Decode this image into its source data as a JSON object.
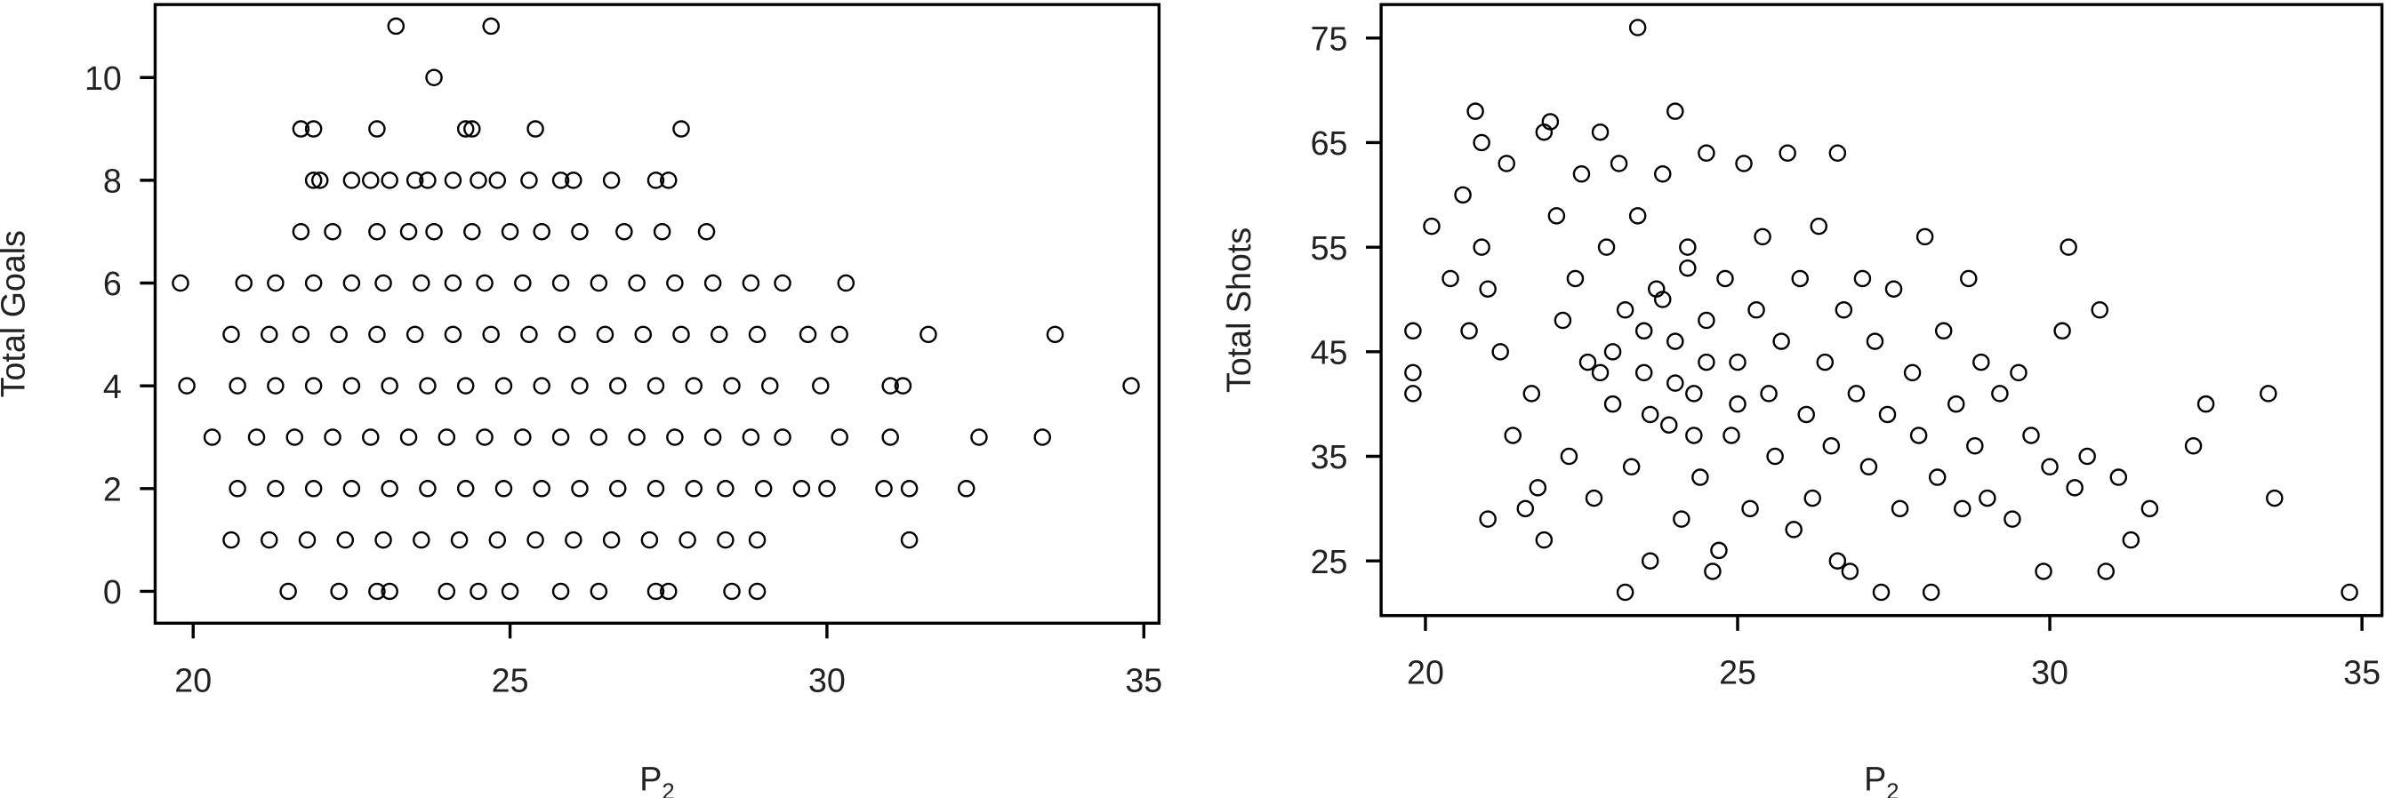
{
  "chart_data": [
    {
      "type": "scatter",
      "ylabel": "Total Goals",
      "xlabel": "P",
      "xlabel_subscript": "2",
      "color": "#000000",
      "xlim": [
        19.4,
        35.24
      ],
      "ylim": [
        -0.62,
        11.42
      ],
      "xticks": [
        20,
        25,
        30,
        35
      ],
      "yticks": [
        0,
        2,
        4,
        6,
        8,
        10
      ],
      "x": [
        23.2,
        24.7,
        23.8,
        21.7,
        21.9,
        22.9,
        24.3,
        24.4,
        25.4,
        27.7,
        21.9,
        22.0,
        22.5,
        22.8,
        23.1,
        23.5,
        23.7,
        24.1,
        24.5,
        24.8,
        25.3,
        25.8,
        26.0,
        26.6,
        27.3,
        27.5,
        21.7,
        22.2,
        22.9,
        23.4,
        23.8,
        24.4,
        25.0,
        25.5,
        26.1,
        26.8,
        27.4,
        28.1,
        19.8,
        20.8,
        21.3,
        21.9,
        22.5,
        23.0,
        23.6,
        24.1,
        24.6,
        25.2,
        25.8,
        26.4,
        27.0,
        27.6,
        28.2,
        28.8,
        29.3,
        30.3,
        20.6,
        21.2,
        21.7,
        22.3,
        22.9,
        23.5,
        24.1,
        24.7,
        25.3,
        25.9,
        26.5,
        27.1,
        27.7,
        28.3,
        28.9,
        29.7,
        30.2,
        31.6,
        33.6,
        19.9,
        20.7,
        21.3,
        21.9,
        22.5,
        23.1,
        23.7,
        24.3,
        24.9,
        25.5,
        26.1,
        26.7,
        27.3,
        27.9,
        28.5,
        29.1,
        29.9,
        31.0,
        31.2,
        34.8,
        20.3,
        21.0,
        21.6,
        22.2,
        22.8,
        23.4,
        24.0,
        24.6,
        25.2,
        25.8,
        26.4,
        27.0,
        27.6,
        28.2,
        28.8,
        29.3,
        30.2,
        31.0,
        32.4,
        33.4,
        20.7,
        21.3,
        21.9,
        22.5,
        23.1,
        23.7,
        24.3,
        24.9,
        25.5,
        26.1,
        26.7,
        27.3,
        27.9,
        28.4,
        29.0,
        29.6,
        30.0,
        30.9,
        31.3,
        32.2,
        20.6,
        21.2,
        21.8,
        22.4,
        23.0,
        23.6,
        24.2,
        24.8,
        25.4,
        26.0,
        26.6,
        27.2,
        27.8,
        28.4,
        28.9,
        31.3,
        21.5,
        22.3,
        22.9,
        23.1,
        24.0,
        24.5,
        25.0,
        25.8,
        26.4,
        27.3,
        27.5,
        28.5,
        28.9
      ],
      "values": [
        11,
        11,
        10,
        9,
        9,
        9,
        9,
        9,
        9,
        9,
        8,
        8,
        8,
        8,
        8,
        8,
        8,
        8,
        8,
        8,
        8,
        8,
        8,
        8,
        8,
        8,
        7,
        7,
        7,
        7,
        7,
        7,
        7,
        7,
        7,
        7,
        7,
        7,
        6,
        6,
        6,
        6,
        6,
        6,
        6,
        6,
        6,
        6,
        6,
        6,
        6,
        6,
        6,
        6,
        6,
        6,
        5,
        5,
        5,
        5,
        5,
        5,
        5,
        5,
        5,
        5,
        5,
        5,
        5,
        5,
        5,
        5,
        5,
        5,
        5,
        4,
        4,
        4,
        4,
        4,
        4,
        4,
        4,
        4,
        4,
        4,
        4,
        4,
        4,
        4,
        4,
        4,
        4,
        4,
        4,
        3,
        3,
        3,
        3,
        3,
        3,
        3,
        3,
        3,
        3,
        3,
        3,
        3,
        3,
        3,
        3,
        3,
        3,
        3,
        3,
        2,
        2,
        2,
        2,
        2,
        2,
        2,
        2,
        2,
        2,
        2,
        2,
        2,
        2,
        2,
        2,
        2,
        2,
        2,
        2,
        1,
        1,
        1,
        1,
        1,
        1,
        1,
        1,
        1,
        1,
        1,
        1,
        1,
        1,
        1,
        1,
        0,
        0,
        0,
        0,
        0,
        0,
        0,
        0,
        0,
        0,
        0,
        0,
        0
      ]
    },
    {
      "type": "scatter",
      "ylabel": "Total Shots",
      "xlabel": "P",
      "xlabel_subscript": "2",
      "color": "#000000",
      "xlim": [
        19.29,
        35.32
      ],
      "ylim": [
        19.77,
        78.2
      ],
      "xticks": [
        20,
        25,
        30,
        35
      ],
      "yticks": [
        25,
        35,
        45,
        55,
        65,
        75
      ],
      "x": [
        19.8,
        19.8,
        19.8,
        20.1,
        20.4,
        20.6,
        20.7,
        20.8,
        20.9,
        20.9,
        21.0,
        21.0,
        21.2,
        21.3,
        21.4,
        21.6,
        21.7,
        21.8,
        21.9,
        21.9,
        22.0,
        22.1,
        22.2,
        22.3,
        22.4,
        22.5,
        22.6,
        22.7,
        22.8,
        22.9,
        23.0,
        23.1,
        23.2,
        23.2,
        23.3,
        23.4,
        23.4,
        23.5,
        23.6,
        23.7,
        23.8,
        23.9,
        24.0,
        24.0,
        24.1,
        24.2,
        24.3,
        24.4,
        24.5,
        24.5,
        24.6,
        24.7,
        24.8,
        24.9,
        25.0,
        25.1,
        25.2,
        25.3,
        25.4,
        25.5,
        25.6,
        25.7,
        25.8,
        25.9,
        26.0,
        26.1,
        26.2,
        26.3,
        26.4,
        26.5,
        26.6,
        26.6,
        26.7,
        26.8,
        26.9,
        27.0,
        27.1,
        27.2,
        27.3,
        27.4,
        27.5,
        27.6,
        27.8,
        27.9,
        28.0,
        28.1,
        28.2,
        28.3,
        28.5,
        28.6,
        28.7,
        28.8,
        28.9,
        29.0,
        29.2,
        29.4,
        29.5,
        29.7,
        29.9,
        30.0,
        30.2,
        30.3,
        30.4,
        30.6,
        30.8,
        30.9,
        31.1,
        31.3,
        31.6,
        32.3,
        32.5,
        33.5,
        33.6,
        34.8,
        23.0,
        23.5,
        24.0,
        24.5,
        23.8,
        24.3,
        25.0,
        22.8,
        24.2,
        23.6
      ],
      "values": [
        47,
        43,
        41,
        57,
        52,
        60,
        47,
        68,
        55,
        65,
        51,
        29,
        45,
        63,
        37,
        30,
        41,
        32,
        66,
        27,
        67,
        58,
        48,
        35,
        52,
        62,
        44,
        31,
        66,
        55,
        40,
        63,
        22,
        49,
        34,
        76,
        58,
        43,
        25,
        51,
        62,
        38,
        68,
        46,
        29,
        55,
        41,
        33,
        64,
        48,
        24,
        26,
        52,
        37,
        44,
        63,
        30,
        49,
        56,
        41,
        35,
        46,
        64,
        28,
        52,
        39,
        31,
        57,
        44,
        36,
        64,
        25,
        49,
        24,
        41,
        52,
        34,
        46,
        22,
        39,
        51,
        30,
        43,
        37,
        56,
        22,
        33,
        47,
        40,
        30,
        52,
        36,
        44,
        31,
        41,
        29,
        43,
        37,
        24,
        34,
        47,
        55,
        32,
        35,
        49,
        24,
        33,
        27,
        30,
        36,
        40,
        41,
        31,
        22,
        45,
        47,
        42,
        44,
        50,
        37,
        40,
        43,
        53,
        39
      ]
    }
  ]
}
